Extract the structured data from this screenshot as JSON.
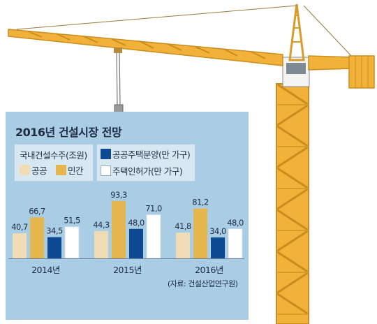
{
  "chart_data": {
    "type": "bar",
    "title": "2016년 건설시장 전망",
    "legend_group_left": "국내건설수주(조원)",
    "categories": [
      "2014년",
      "2015년",
      "2016년"
    ],
    "series": [
      {
        "name": "공공",
        "values": [
          40.7,
          44.3,
          41.8
        ],
        "color": "#f1ddb5",
        "value_labels": [
          "40,7",
          "44,3",
          "41,8"
        ]
      },
      {
        "name": "민간",
        "values": [
          66.7,
          93.3,
          81.2
        ],
        "color": "#e5b54e",
        "value_labels": [
          "66,7",
          "93,3",
          "81,2"
        ]
      },
      {
        "name": "공공주택분양(만 가구)",
        "values": [
          34.5,
          48.0,
          34.0
        ],
        "color": "#0e4a92",
        "value_labels": [
          "34,5",
          "48,0",
          "34,0"
        ]
      },
      {
        "name": "주택인허가(만 가구)",
        "values": [
          51.5,
          71.0,
          48.0
        ],
        "color": "#ffffff",
        "value_labels": [
          "51,5",
          "71,0",
          "48,0"
        ]
      }
    ],
    "ylim": [
      0,
      100
    ],
    "grid": false,
    "legend_position": "top",
    "source": "(자료: 건설산업연구원)"
  }
}
